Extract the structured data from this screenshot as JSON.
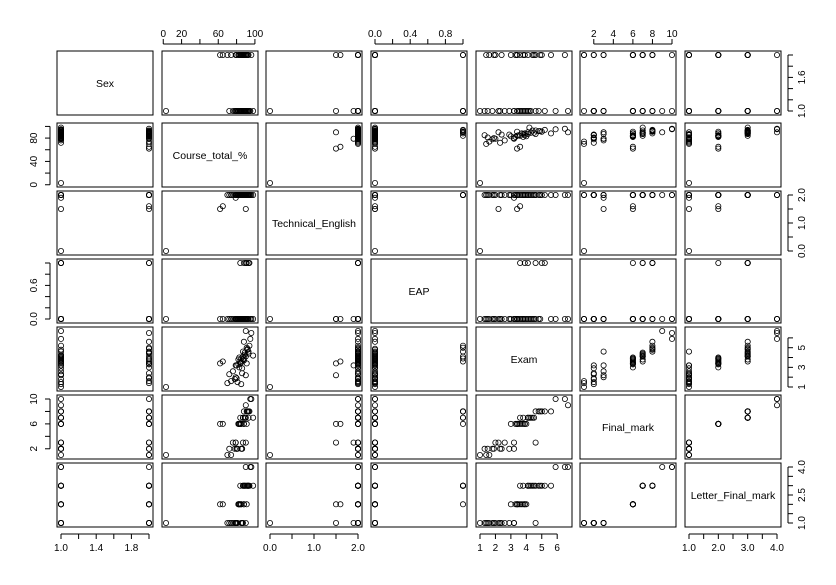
{
  "chart_data": {
    "type": "scatter",
    "subtype": "pairs-matrix",
    "title": "",
    "variables": [
      "Sex",
      "Course_total_%",
      "Technical_English",
      "EAP",
      "Exam",
      "Final_mark",
      "Letter_Final_mark"
    ],
    "layout": {
      "grid": false,
      "panel_order": "row i = y variable, column j = x variable; diagonal holds variable names",
      "top_axes_columns": [
        1,
        3,
        5
      ],
      "bottom_axes_columns": [
        0,
        2,
        4,
        6
      ],
      "left_axes_rows": [
        1,
        3,
        5
      ],
      "right_axes_rows": [
        0,
        2,
        4,
        6
      ]
    },
    "axes": {
      "Sex": {
        "range": [
          1.0,
          2.0
        ],
        "ticks": [
          1.0,
          1.2,
          1.4,
          1.6,
          1.8,
          2.0
        ],
        "labels": [
          "1.0",
          "",
          "1.4",
          "",
          "1.8",
          ""
        ],
        "right_labels": [
          "1.0",
          "",
          "",
          "1.6",
          "",
          ""
        ]
      },
      "Course_total_%": {
        "range": [
          3,
          99
        ],
        "ticks": [
          0,
          20,
          40,
          60,
          80,
          100
        ],
        "labels": [
          "0",
          "20",
          "",
          "60",
          "",
          "100"
        ],
        "left_labels": [
          "0",
          "",
          "40",
          "",
          "80",
          ""
        ]
      },
      "Technical_English": {
        "range": [
          0,
          2
        ],
        "ticks": [
          0.0,
          0.5,
          1.0,
          1.5,
          2.0
        ],
        "labels": [
          "0.0",
          "",
          "1.0",
          "",
          "2.0"
        ]
      },
      "EAP": {
        "range": [
          0,
          1
        ],
        "ticks": [
          0.0,
          0.2,
          0.4,
          0.6,
          0.8,
          1.0
        ],
        "labels": [
          "0.0",
          "",
          "0.4",
          "",
          "0.8",
          ""
        ],
        "left_labels": [
          "0.0",
          "",
          "",
          "0.6",
          "",
          ""
        ]
      },
      "Exam": {
        "range": [
          1.0,
          6.7
        ],
        "ticks": [
          1,
          2,
          3,
          4,
          5,
          6
        ],
        "labels": [
          "1",
          "2",
          "3",
          "4",
          "5",
          "6"
        ],
        "right_labels": [
          "1",
          "",
          "3",
          "",
          "5",
          ""
        ]
      },
      "Final_mark": {
        "range": [
          1,
          10
        ],
        "ticks": [
          2,
          4,
          6,
          8,
          10
        ],
        "labels": [
          "2",
          "4",
          "6",
          "8",
          "10"
        ],
        "left_labels": [
          "2",
          "",
          "6",
          "",
          "10"
        ]
      },
      "Letter_Final_mark": {
        "range": [
          1,
          4
        ],
        "ticks": [
          1.0,
          1.5,
          2.0,
          2.5,
          3.0,
          3.5,
          4.0
        ],
        "labels": [
          "1.0",
          "",
          "2.0",
          "",
          "3.0",
          "",
          "4.0"
        ],
        "right_labels": [
          "1.0",
          "",
          "",
          "2.5",
          "",
          "",
          "4.0"
        ]
      }
    },
    "observations": [
      [
        1,
        3,
        0,
        0,
        1.0,
        1,
        1
      ],
      [
        1,
        88,
        2,
        1,
        3.9,
        6,
        2
      ],
      [
        1,
        92,
        2,
        0,
        4.8,
        8,
        3
      ],
      [
        1,
        85,
        2,
        0,
        3.5,
        6,
        2
      ],
      [
        1,
        80,
        2,
        0,
        3.2,
        2,
        1
      ],
      [
        1,
        90,
        1.5,
        0,
        2.2,
        3,
        1
      ],
      [
        1,
        84,
        2,
        1,
        3.6,
        7,
        3
      ],
      [
        1,
        78,
        2,
        0,
        1.8,
        2,
        1
      ],
      [
        1,
        95,
        2,
        0,
        5.9,
        10,
        4
      ],
      [
        1,
        87,
        2,
        0,
        4.1,
        7,
        3
      ],
      [
        1,
        82,
        2,
        0,
        3.8,
        6,
        2
      ],
      [
        1,
        76,
        2,
        0,
        2.6,
        3,
        1
      ],
      [
        1,
        93,
        2,
        1,
        4.6,
        8,
        3
      ],
      [
        1,
        81,
        2,
        0,
        1.5,
        2,
        1
      ],
      [
        1,
        89,
        2,
        0,
        4.3,
        7,
        3
      ],
      [
        1,
        86,
        2,
        0,
        2.9,
        2,
        1
      ],
      [
        1,
        91,
        2,
        0,
        3.4,
        6,
        2
      ],
      [
        1,
        79,
        1.9,
        0,
        3.2,
        3,
        1
      ],
      [
        1,
        90,
        2,
        0,
        6.7,
        9,
        4
      ],
      [
        1,
        83,
        2,
        0,
        4.0,
        6,
        2
      ],
      [
        1,
        98,
        2,
        0,
        4.2,
        7,
        3
      ],
      [
        1,
        72,
        2,
        0,
        2.3,
        2,
        1
      ],
      [
        1,
        88,
        2,
        0,
        3.7,
        6,
        2
      ],
      [
        1,
        94,
        2,
        1,
        5.2,
        8,
        3
      ],
      [
        1,
        85,
        2,
        0,
        1.3,
        2,
        1
      ],
      [
        2,
        96,
        2,
        0,
        6.5,
        10,
        4
      ],
      [
        2,
        87,
        2,
        0,
        3.8,
        7,
        3
      ],
      [
        2,
        84,
        2,
        0,
        3.4,
        6,
        2
      ],
      [
        2,
        62,
        1.5,
        0,
        3.4,
        6,
        2
      ],
      [
        2,
        65,
        1.6,
        0,
        3.6,
        6,
        2
      ],
      [
        2,
        89,
        2,
        0,
        4.5,
        7,
        3
      ],
      [
        2,
        92,
        2,
        0,
        4.9,
        8,
        3
      ],
      [
        2,
        86,
        2,
        0,
        2.4,
        2,
        1
      ],
      [
        2,
        80,
        2,
        0,
        1.9,
        2,
        1
      ],
      [
        2,
        74,
        2,
        0,
        1.6,
        1,
        1
      ],
      [
        2,
        90,
        2,
        1,
        4.1,
        7,
        3
      ],
      [
        2,
        83,
        2,
        0,
        3.0,
        6,
        2
      ],
      [
        2,
        88,
        2,
        0,
        5.6,
        8,
        3
      ],
      [
        2,
        79,
        2,
        0,
        2.0,
        3,
        1
      ],
      [
        2,
        93,
        2,
        0,
        4.4,
        7,
        3
      ],
      [
        2,
        85,
        2,
        0,
        3.9,
        6,
        2
      ],
      [
        2,
        70,
        2,
        0,
        1.4,
        1,
        1
      ],
      [
        2,
        91,
        2,
        1,
        5.0,
        8,
        3
      ],
      [
        2,
        87,
        2,
        0,
        4.6,
        3,
        1
      ],
      [
        2,
        82,
        2,
        0,
        3.3,
        6,
        2
      ]
    ],
    "style": {
      "point_shape": "open-circle",
      "point_color": "#000000",
      "frame_color": "#000000",
      "background": "#ffffff"
    }
  }
}
